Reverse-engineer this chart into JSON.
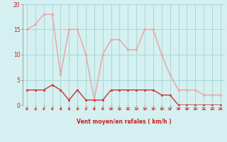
{
  "x": [
    0,
    1,
    2,
    3,
    4,
    5,
    6,
    7,
    8,
    9,
    10,
    11,
    12,
    13,
    14,
    15,
    16,
    17,
    18,
    19,
    20,
    21,
    22,
    23
  ],
  "mean_wind": [
    3,
    3,
    3,
    4,
    3,
    1,
    3,
    1,
    1,
    1,
    3,
    3,
    3,
    3,
    3,
    3,
    2,
    2,
    0,
    0,
    0,
    0,
    0,
    0
  ],
  "gust_wind": [
    15,
    16,
    18,
    18,
    6,
    15,
    15,
    10,
    1,
    10,
    13,
    13,
    11,
    11,
    15,
    15,
    10,
    6,
    3,
    3,
    3,
    2,
    2,
    2
  ],
  "mean_color": "#d03030",
  "gust_color": "#f0a0a0",
  "bg_color": "#d4f0f0",
  "grid_color": "#a8d8d8",
  "xlabel": "Vent moyen/en rafales ( km/h )",
  "xlabel_color": "#cc2020",
  "tick_color": "#cc2020",
  "ylim": [
    0,
    20
  ],
  "xlim": [
    -0.5,
    23.5
  ],
  "yticks": [
    0,
    5,
    10,
    15,
    20
  ]
}
